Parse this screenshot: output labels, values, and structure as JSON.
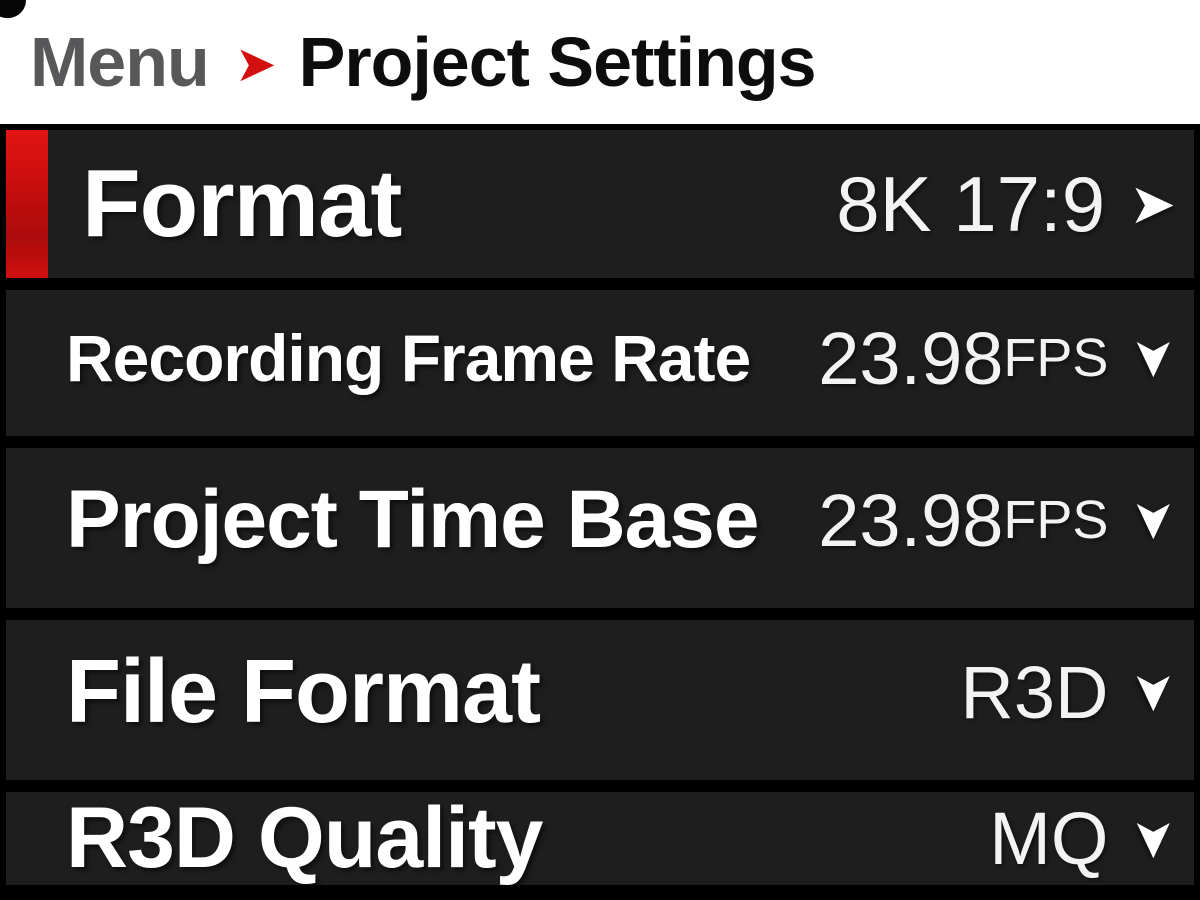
{
  "header": {
    "breadcrumb_root": "Menu",
    "title": "Project Settings"
  },
  "icons": {
    "arrow_right": "➤",
    "chevron_down": "➤"
  },
  "menu": {
    "rows": [
      {
        "label": "Format",
        "value": "8K 17:9",
        "suffix": "",
        "icon": "arrow-right",
        "selected": true
      },
      {
        "label": "Recording Frame Rate",
        "value": "23.98",
        "suffix": "FPS",
        "icon": "chevron-down",
        "selected": false
      },
      {
        "label": "Project Time Base",
        "value": "23.98",
        "suffix": "FPS",
        "icon": "chevron-down",
        "selected": false
      },
      {
        "label": "File Format",
        "value": "R3D",
        "suffix": "",
        "icon": "chevron-down",
        "selected": false
      },
      {
        "label": "R3D Quality",
        "value": "MQ",
        "suffix": "",
        "icon": "chevron-down",
        "selected": false
      }
    ]
  },
  "colors": {
    "accent_red": "#d40f0f",
    "row_background": "#1e1e1f",
    "header_background": "#ffffff",
    "breadcrumb_gray": "#58585a",
    "text_white": "#ffffff",
    "background_black": "#000000"
  }
}
